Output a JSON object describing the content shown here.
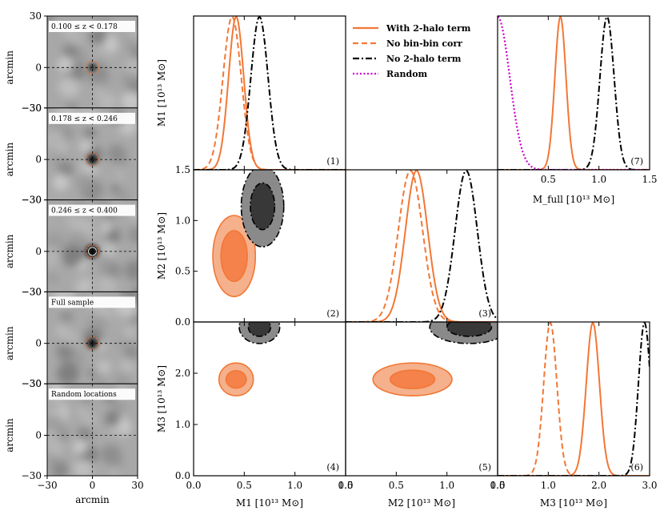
{
  "chart_data": {
    "type": "corner",
    "stamp_columns": {
      "axis_label": "arcmin",
      "x_ticks": [
        "−30",
        "0",
        "30"
      ],
      "y_ticks": [
        "30",
        "0",
        "−30"
      ],
      "panels": [
        {
          "label": "0.100 ≤ z < 0.178",
          "signal": "weak"
        },
        {
          "label": "0.178 ≤ z < 0.246",
          "signal": "medium"
        },
        {
          "label": "0.246 ≤ z < 0.400",
          "signal": "strong"
        },
        {
          "label": "Full sample",
          "signal": "medium"
        },
        {
          "label": "Random locations",
          "signal": "none"
        }
      ]
    },
    "legend": [
      {
        "label": "With 2-halo term",
        "color": "#f37735",
        "style": "solid"
      },
      {
        "label": "No bin-bin corr",
        "color": "#f37735",
        "style": "dashed"
      },
      {
        "label": "No 2-halo term",
        "color": "#000000",
        "style": "dashdot"
      },
      {
        "label": "Random",
        "color": "#cc00cc",
        "style": "dotted"
      }
    ],
    "axis_labels": {
      "M1": "M1  [10¹³ M⊙]",
      "M2": "M2  [10¹³ M⊙]",
      "M3": "M3  [10¹³ M⊙]",
      "Mfull": "M_full  [10¹³ M⊙]"
    },
    "panel_numbers": [
      "(1)",
      "(2)",
      "(3)",
      "(4)",
      "(5)",
      "(6)",
      "(7)"
    ],
    "ticks": {
      "M1_x": [
        "0.0",
        "0.5",
        "1.0",
        "1.5"
      ],
      "M2_x": [
        "0.0",
        "0.5",
        "1.0",
        "1.5"
      ],
      "M3_x": [
        "0.0",
        "1.0",
        "2.0",
        "3.0"
      ],
      "Mfull_x": [
        "0.5",
        "1.0",
        "1.5"
      ],
      "M2_y": [
        "0.0",
        "0.5",
        "1.0",
        "1.5"
      ],
      "M3_y": [
        "0.0",
        "1.0",
        "2.0"
      ]
    },
    "ranges": {
      "M1": [
        0,
        1.5
      ],
      "M2": [
        0,
        1.5
      ],
      "M3": [
        0,
        3.0
      ],
      "Mfull": [
        0,
        1.5
      ]
    },
    "posteriors_1d": {
      "M1": [
        {
          "series": "With 2-halo term",
          "mean": 0.42,
          "sigma": 0.075
        },
        {
          "series": "No bin-bin corr",
          "mean": 0.38,
          "sigma": 0.09
        },
        {
          "series": "No 2-halo term",
          "mean": 0.65,
          "sigma": 0.085
        }
      ],
      "M2": [
        {
          "series": "With 2-halo term",
          "mean": 0.7,
          "sigma": 0.11
        },
        {
          "series": "No bin-bin corr",
          "mean": 0.64,
          "sigma": 0.12
        },
        {
          "series": "No 2-halo term",
          "mean": 1.19,
          "sigma": 0.11
        }
      ],
      "M3": [
        {
          "series": "With 2-halo term",
          "mean": 1.88,
          "sigma": 0.13
        },
        {
          "series": "No bin-bin corr",
          "mean": 1.04,
          "sigma": 0.13
        },
        {
          "series": "No 2-halo term",
          "mean": 2.9,
          "sigma": 0.12
        }
      ],
      "Mfull": [
        {
          "series": "With 2-halo term",
          "mean": 0.62,
          "sigma": 0.055
        },
        {
          "series": "No 2-halo term",
          "mean": 1.08,
          "sigma": 0.07
        },
        {
          "series": "Random",
          "mean": 0.0,
          "sigma": 0.12
        }
      ]
    },
    "contours_2d": [
      {
        "x": "M1",
        "y": "M2",
        "series": "With 2-halo term",
        "cx": 0.4,
        "cy": 0.65,
        "r68": [
          0.13,
          0.25
        ],
        "r95": [
          0.21,
          0.4
        ]
      },
      {
        "x": "M1",
        "y": "M2",
        "series": "No 2-halo term",
        "cx": 0.68,
        "cy": 1.14,
        "r68": [
          0.12,
          0.23
        ],
        "r95": [
          0.21,
          0.4
        ]
      },
      {
        "x": "M1",
        "y": "M3",
        "series": "With 2-halo term",
        "cx": 0.42,
        "cy": 1.88,
        "r68": [
          0.1,
          0.17
        ],
        "r95": [
          0.17,
          0.32
        ]
      },
      {
        "x": "M1",
        "y": "M3",
        "series": "No 2-halo term",
        "cx": 0.65,
        "cy": 2.9,
        "r68": [
          0.11,
          0.18
        ],
        "r95": [
          0.2,
          0.32
        ]
      },
      {
        "x": "M2",
        "y": "M3",
        "series": "With 2-halo term",
        "cx": 0.66,
        "cy": 1.88,
        "r68": [
          0.22,
          0.18
        ],
        "r95": [
          0.39,
          0.32
        ]
      },
      {
        "x": "M2",
        "y": "M3",
        "series": "No 2-halo term",
        "cx": 1.22,
        "cy": 2.9,
        "r68": [
          0.22,
          0.18
        ],
        "r95": [
          0.39,
          0.32
        ]
      }
    ]
  }
}
